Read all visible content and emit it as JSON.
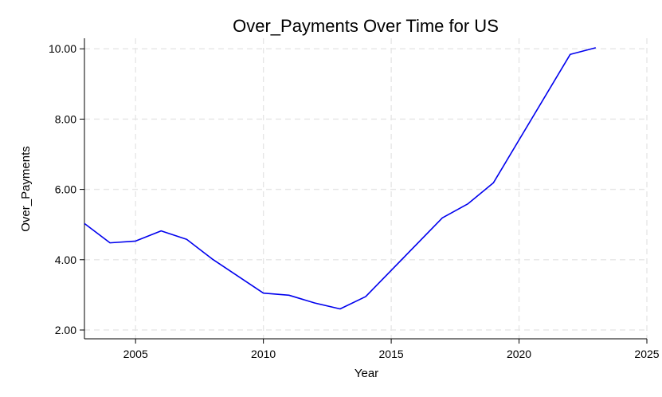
{
  "chart_data": {
    "type": "line",
    "title": "Over_Payments Over Time for US",
    "xlabel": "Year",
    "ylabel": "Over_Payments",
    "xlim": [
      2003,
      2025
    ],
    "ylim": [
      1.75,
      10.3
    ],
    "x_ticks": [
      2005,
      2010,
      2015,
      2020,
      2025
    ],
    "y_ticks": [
      2.0,
      4.0,
      6.0,
      8.0,
      10.0
    ],
    "y_tick_labels": [
      "2.00",
      "4.00",
      "6.00",
      "8.00",
      "10.00"
    ],
    "grid": true,
    "line_color": "#0000ee",
    "grid_color": "#e6e6e6",
    "series": [
      {
        "x": [
          2003,
          2004,
          2005,
          2006,
          2007,
          2008,
          2010,
          2011,
          2012,
          2013,
          2014,
          2017,
          2018,
          2019,
          2022,
          2023
        ],
        "values": [
          5.03,
          4.48,
          4.53,
          4.82,
          4.58,
          4.02,
          3.05,
          2.99,
          2.77,
          2.6,
          2.95,
          5.19,
          5.59,
          6.19,
          9.84,
          10.03
        ]
      }
    ]
  }
}
